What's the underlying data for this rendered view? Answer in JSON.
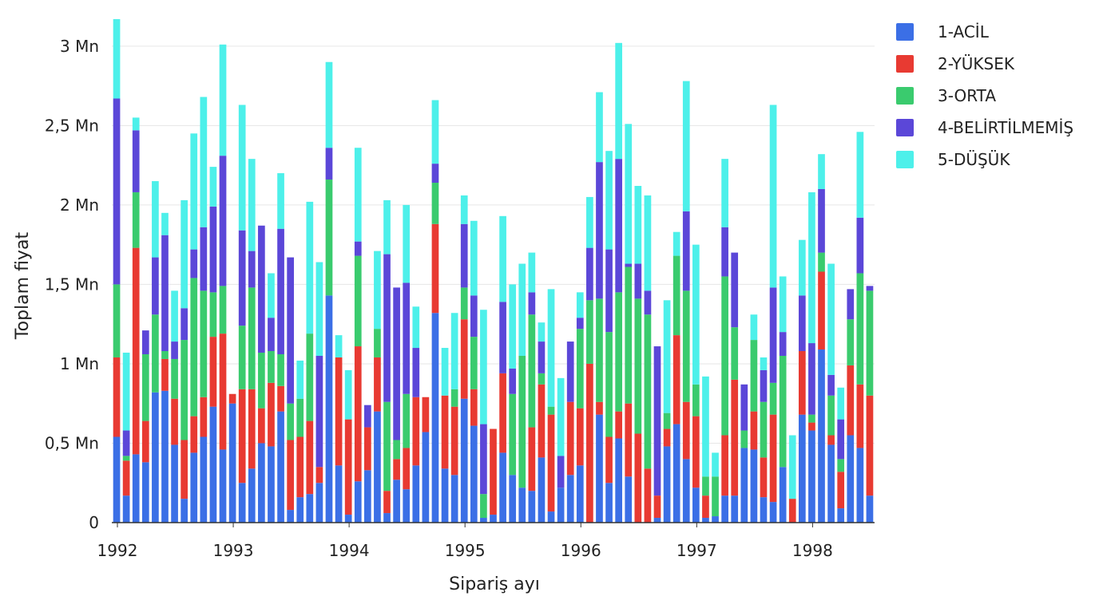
{
  "chart_data": {
    "type": "bar",
    "stacked": true,
    "xlabel": "Sipariş ayı",
    "ylabel": "Toplam fiyat",
    "ylim": [
      0,
      3200000
    ],
    "yticks": [
      0,
      500000,
      1000000,
      1500000,
      2000000,
      2500000,
      3000000
    ],
    "ytick_labels": [
      "0",
      "0,5 Mn",
      "1 Mn",
      "1,5 Mn",
      "2 Mn",
      "2,5 Mn",
      "3 Mn"
    ],
    "xticks": [
      "1992",
      "1993",
      "1994",
      "1995",
      "1996",
      "1997",
      "1998"
    ],
    "x_start": "1992-01",
    "grid": "horizontal",
    "legend_position": "top-right",
    "series": [
      {
        "name": "1-ACİL",
        "color": "#3b6fe6",
        "values": [
          0.54,
          0.17,
          0.43,
          0.38,
          0.82,
          0.83,
          0.49,
          0.15,
          0.44,
          0.54,
          0.73,
          0.46,
          0.75,
          0.25,
          0.34,
          0.5,
          0.48,
          0.7,
          0.08,
          0.16,
          0.18,
          0.25,
          1.43,
          0.36,
          0.05,
          0.26,
          0.33,
          0.7,
          0.06,
          0.27,
          0.21,
          0.36,
          0.57,
          1.32,
          0.34,
          0.3,
          0.78,
          0.61,
          0.03,
          0.05,
          0.44,
          0.3,
          0.22,
          0.2,
          0.41,
          0.07,
          0.22,
          0.3,
          0.36,
          0.0,
          0.68,
          0.25,
          0.53,
          0.29,
          0.0,
          0.0,
          0.03,
          0.48,
          0.62,
          0.4,
          0.22,
          0.03,
          0.04,
          0.17,
          0.17,
          0.47,
          0.46,
          0.16,
          0.13,
          0.35,
          0.0,
          0.68,
          0.58,
          1.09,
          0.49,
          0.09,
          0.55,
          0.47,
          0.17
        ]
      },
      {
        "name": "2-YÜKSEK",
        "color": "#e83a32",
        "values": [
          0.5,
          0.22,
          1.3,
          0.26,
          0.0,
          0.2,
          0.29,
          0.37,
          0.23,
          0.25,
          0.44,
          0.73,
          0.06,
          0.59,
          0.5,
          0.22,
          0.4,
          0.16,
          0.44,
          0.38,
          0.46,
          0.1,
          0.0,
          0.68,
          0.6,
          0.85,
          0.27,
          0.34,
          0.14,
          0.13,
          0.26,
          0.43,
          0.22,
          0.56,
          0.46,
          0.43,
          0.5,
          0.23,
          0.0,
          0.54,
          0.5,
          0.0,
          0.0,
          0.4,
          0.46,
          0.61,
          0.0,
          0.46,
          0.36,
          1.0,
          0.08,
          0.29,
          0.17,
          0.46,
          0.56,
          0.34,
          0.14,
          0.11,
          0.56,
          0.36,
          0.45,
          0.14,
          0.0,
          0.38,
          0.73,
          0.0,
          0.24,
          0.25,
          0.55,
          0.0,
          0.15,
          0.4,
          0.05,
          0.49,
          0.06,
          0.23,
          0.44,
          0.4,
          0.63
        ]
      },
      {
        "name": "3-ORTA",
        "color": "#3acb6e",
        "values": [
          0.46,
          0.03,
          0.35,
          0.42,
          0.49,
          0.05,
          0.25,
          0.63,
          0.87,
          0.67,
          0.28,
          0.3,
          0.0,
          0.4,
          0.64,
          0.35,
          0.2,
          0.2,
          0.23,
          0.24,
          0.55,
          0.0,
          0.73,
          0.0,
          0.0,
          0.57,
          0.0,
          0.18,
          0.56,
          0.12,
          0.34,
          0.0,
          0.0,
          0.26,
          0.0,
          0.11,
          0.2,
          0.33,
          0.15,
          0.0,
          0.0,
          0.51,
          0.83,
          0.71,
          0.07,
          0.05,
          0.0,
          0.0,
          0.5,
          0.4,
          0.65,
          0.66,
          0.75,
          0.86,
          0.85,
          0.97,
          0.0,
          0.1,
          0.5,
          0.7,
          0.2,
          0.12,
          0.25,
          1.0,
          0.33,
          0.11,
          0.45,
          0.35,
          0.2,
          0.7,
          0.0,
          0.0,
          0.05,
          0.12,
          0.25,
          0.08,
          0.29,
          0.7,
          0.66
        ]
      },
      {
        "name": "4-BELİRTİLMEMİŞ",
        "color": "#5b47d8",
        "values": [
          1.17,
          0.16,
          0.39,
          0.15,
          0.36,
          0.73,
          0.11,
          0.2,
          0.18,
          0.4,
          0.54,
          0.82,
          0.0,
          0.6,
          0.23,
          0.8,
          0.21,
          0.79,
          0.92,
          0.0,
          0.0,
          0.7,
          0.2,
          0.0,
          0.0,
          0.09,
          0.14,
          0.0,
          0.93,
          0.96,
          0.7,
          0.31,
          0.0,
          0.12,
          0.0,
          0.0,
          0.4,
          0.26,
          0.44,
          0.0,
          0.45,
          0.16,
          0.0,
          0.14,
          0.2,
          0.0,
          0.2,
          0.38,
          0.07,
          0.33,
          0.86,
          0.52,
          0.84,
          0.02,
          0.22,
          0.15,
          0.94,
          0.0,
          0.0,
          0.5,
          0.0,
          0.0,
          0.0,
          0.31,
          0.47,
          0.29,
          0.0,
          0.2,
          0.6,
          0.15,
          0.0,
          0.35,
          0.45,
          0.4,
          0.13,
          0.25,
          0.19,
          0.35,
          0.03
        ]
      },
      {
        "name": "5-DÜŞÜK",
        "color": "#4df0ea",
        "values": [
          0.5,
          0.49,
          0.08,
          0.0,
          0.48,
          0.14,
          0.32,
          0.68,
          0.73,
          0.82,
          0.25,
          0.7,
          0.0,
          0.79,
          0.58,
          0.0,
          0.28,
          0.35,
          0.0,
          0.24,
          0.83,
          0.59,
          0.54,
          0.14,
          0.31,
          0.59,
          0.0,
          0.49,
          0.34,
          0.0,
          0.49,
          0.26,
          0.0,
          0.4,
          0.3,
          0.48,
          0.18,
          0.47,
          0.72,
          0.0,
          0.54,
          0.53,
          0.58,
          0.25,
          0.12,
          0.74,
          0.49,
          0.0,
          0.16,
          0.32,
          0.44,
          0.62,
          0.73,
          0.88,
          0.49,
          0.6,
          0.0,
          0.71,
          0.15,
          0.82,
          0.88,
          0.63,
          0.15,
          0.43,
          0.0,
          0.0,
          0.16,
          0.08,
          1.15,
          0.35,
          0.4,
          0.35,
          0.95,
          0.22,
          0.7,
          0.2,
          0.0,
          0.54,
          0.0
        ]
      }
    ]
  }
}
